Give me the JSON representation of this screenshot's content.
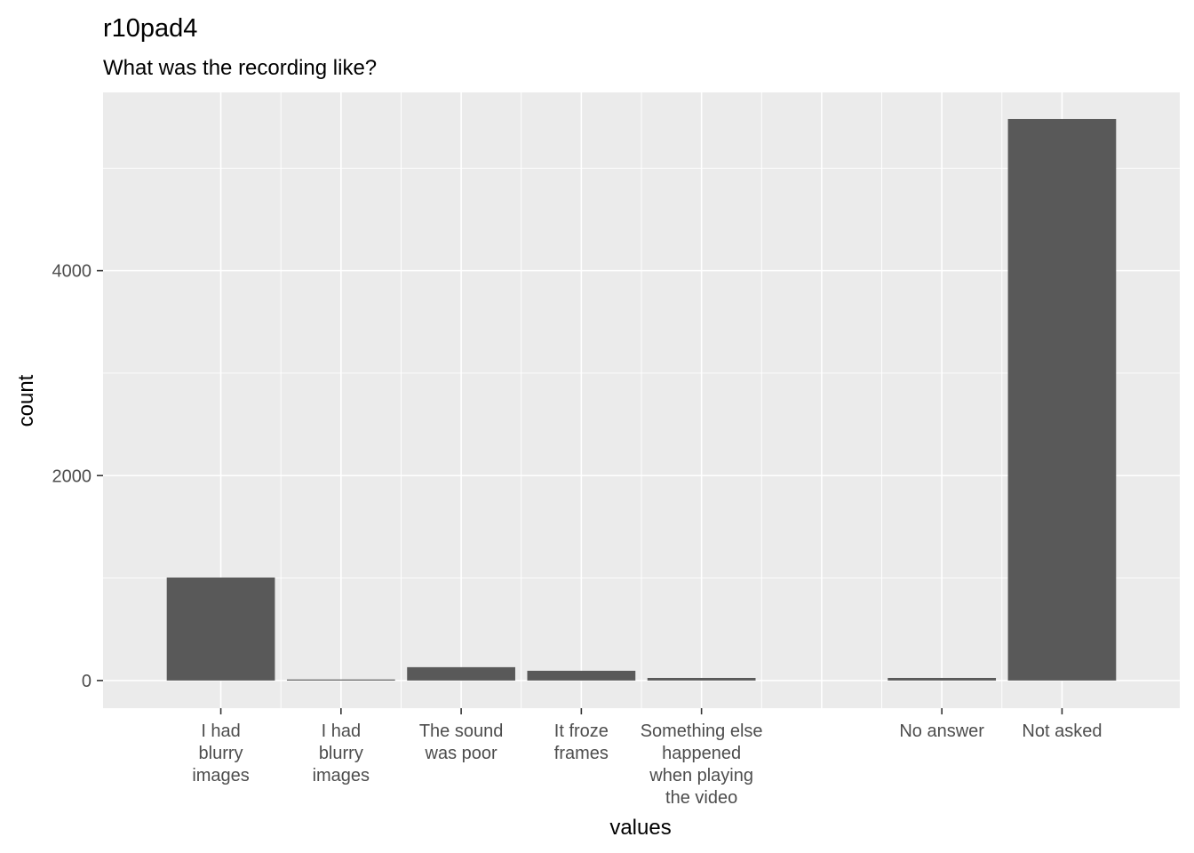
{
  "chart_data": {
    "type": "bar",
    "title": "r10pad4",
    "subtitle": "What was the recording like?",
    "xlabel": "values",
    "ylabel": "count",
    "ylim": [
      -270,
      5740
    ],
    "yticks": [
      0,
      2000,
      4000
    ],
    "grid": true,
    "bars": [
      {
        "x": -8,
        "value": 1005
      },
      {
        "x": -7,
        "value": 10
      },
      {
        "x": -6,
        "value": 130
      },
      {
        "x": -5,
        "value": 95
      },
      {
        "x": -4,
        "value": 25
      },
      {
        "x": -2,
        "value": 25
      },
      {
        "x": -1,
        "value": 5480
      }
    ],
    "bar_width": 0.9,
    "xlim": [
      -8.98,
      -0.02
    ],
    "xticks": [
      {
        "x": -8,
        "lines": [
          "I had",
          "blurry",
          "images"
        ]
      },
      {
        "x": -7,
        "lines": [
          "I had",
          "blurry",
          "images"
        ]
      },
      {
        "x": -6,
        "lines": [
          "The sound",
          "was poor"
        ]
      },
      {
        "x": -5,
        "lines": [
          "It froze",
          "frames"
        ]
      },
      {
        "x": -4,
        "lines": [
          "Something else",
          "happened",
          "when playing",
          "the video"
        ]
      },
      {
        "x": -2,
        "lines": [
          "No answer"
        ]
      },
      {
        "x": -1,
        "lines": [
          "Not asked"
        ]
      }
    ],
    "colors": {
      "bar": "#595959",
      "panel": "#ebebeb",
      "grid_major": "#ffffff"
    }
  }
}
